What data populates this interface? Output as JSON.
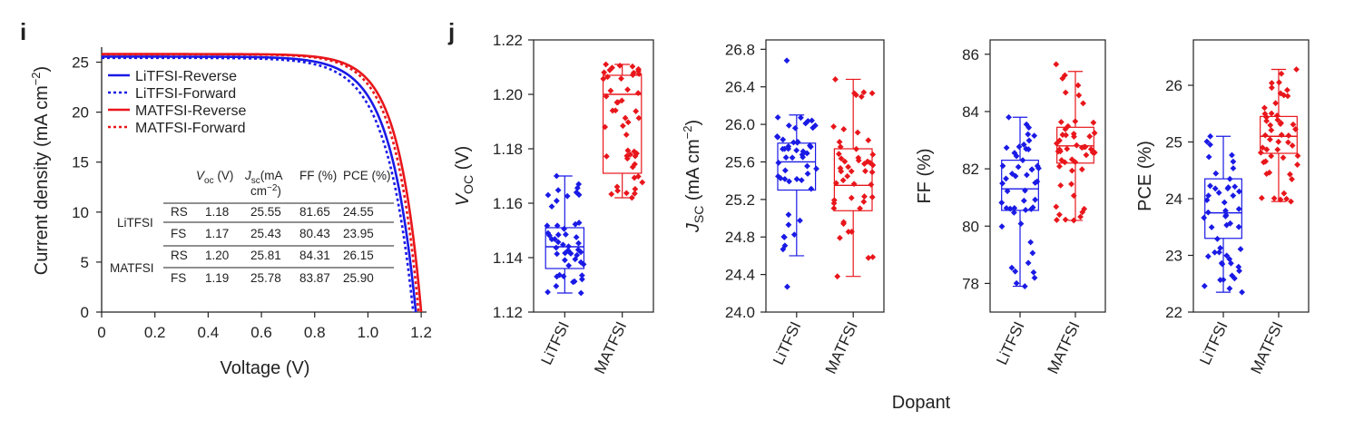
{
  "figure": {
    "panel_i": "i",
    "panel_j": "j",
    "shared_xlabel": "Dopant"
  },
  "colors": {
    "litfsi": "#1a1ae6",
    "matfsi": "#e8161b",
    "axis": "#222222"
  },
  "chart_data": [
    {
      "type": "line",
      "title": "",
      "xlabel": "Voltage (V)",
      "ylabel_main": "Current density (mA cm",
      "ylabel_sup": "−2",
      "ylabel_tail": ")",
      "xlim": [
        0,
        1.22
      ],
      "ylim": [
        0,
        26.5
      ],
      "xticks": [
        "0",
        "0.2",
        "0.4",
        "0.6",
        "0.8",
        "1.0",
        "1.2"
      ],
      "xtick_values": [
        0,
        0.2,
        0.4,
        0.6,
        0.8,
        1.0,
        1.2
      ],
      "yticks": [
        "0",
        "5",
        "10",
        "15",
        "20",
        "25"
      ],
      "ytick_values": [
        0,
        5,
        10,
        15,
        20,
        25
      ],
      "legend_position": "top-left",
      "series": [
        {
          "name": "LiTFSI-Reverse",
          "color": "#1a1ae6",
          "dash": "solid",
          "voc": 1.18,
          "jsc": 25.55,
          "ff": 81.65
        },
        {
          "name": "LiTFSI-Forward",
          "color": "#1a1ae6",
          "dash": "dotted",
          "voc": 1.17,
          "jsc": 25.43,
          "ff": 80.43
        },
        {
          "name": "MATFSI-Reverse",
          "color": "#e8161b",
          "dash": "solid",
          "voc": 1.2,
          "jsc": 25.81,
          "ff": 84.31
        },
        {
          "name": "MATFSI-Forward",
          "color": "#e8161b",
          "dash": "dotted",
          "voc": 1.19,
          "jsc": 25.78,
          "ff": 83.87
        }
      ],
      "table": {
        "headers": [
          "",
          "",
          "V",
          "oc",
          " (V)",
          "J",
          "sc",
          "(mA",
          "cm",
          "−2",
          ")",
          "FF (%)",
          "PCE (%)"
        ],
        "voc_head": "V",
        "voc_sub": "oc",
        "voc_unit": " (V)",
        "jsc_head": "J",
        "jsc_sub": "sc",
        "jsc_unit": "(mA",
        "jsc_unit2": "cm",
        "jsc_sup": "−2",
        "jsc_close": ")",
        "ff_head": "FF (%)",
        "pce_head": "PCE (%)",
        "groups": [
          {
            "name": "LiTFSI",
            "rows": [
              {
                "scan": "RS",
                "voc": "1.18",
                "jsc": "25.55",
                "ff": "81.65",
                "pce": "24.55"
              },
              {
                "scan": "FS",
                "voc": "1.17",
                "jsc": "25.43",
                "ff": "80.43",
                "pce": "23.95"
              }
            ]
          },
          {
            "name": "MATFSI",
            "rows": [
              {
                "scan": "RS",
                "voc": "1.20",
                "jsc": "25.81",
                "ff": "84.31",
                "pce": "26.15"
              },
              {
                "scan": "FS",
                "voc": "1.19",
                "jsc": "25.78",
                "ff": "83.87",
                "pce": "25.90"
              }
            ]
          }
        ]
      }
    },
    {
      "type": "box",
      "ylabel_main": "V",
      "ylabel_sub": "OC",
      "ylabel_tail": " (V)",
      "ylim": [
        1.12,
        1.22
      ],
      "yticks": [
        "1.12",
        "1.14",
        "1.16",
        "1.18",
        "1.20",
        "1.22"
      ],
      "ytick_values": [
        1.12,
        1.14,
        1.16,
        1.18,
        1.2,
        1.22
      ],
      "categories": [
        "LiTFSI",
        "MATFSI"
      ],
      "boxes": [
        {
          "q1": 1.136,
          "median": 1.144,
          "q3": 1.151,
          "whisker_low": 1.127,
          "whisker_high": 1.17,
          "n": 50,
          "min": 1.127,
          "max": 1.17,
          "seed": 11
        },
        {
          "q1": 1.171,
          "median": 1.2,
          "q3": 1.207,
          "whisker_low": 1.162,
          "whisker_high": 1.211,
          "n": 50,
          "min": 1.162,
          "max": 1.211,
          "seed": 12
        }
      ]
    },
    {
      "type": "box",
      "ylabel_main": "J",
      "ylabel_sub": "SC",
      "ylabel_tail": " (mA cm",
      "ylabel_sup": "−2",
      "ylabel_close": ")",
      "ylim": [
        24.0,
        26.9
      ],
      "yticks": [
        "24.0",
        "24.4",
        "24.8",
        "25.2",
        "25.6",
        "26.0",
        "26.4",
        "26.8"
      ],
      "ytick_values": [
        24.0,
        24.4,
        24.8,
        25.2,
        25.6,
        26.0,
        26.4,
        26.8
      ],
      "categories": [
        "LiTFSI",
        "MATFSI"
      ],
      "boxes": [
        {
          "q1": 25.3,
          "median": 25.6,
          "q3": 25.8,
          "whisker_low": 24.6,
          "whisker_high": 26.1,
          "n": 50,
          "min": 24.27,
          "max": 26.68,
          "seed": 21
        },
        {
          "q1": 25.08,
          "median": 25.35,
          "q3": 25.74,
          "whisker_low": 24.38,
          "whisker_high": 26.48,
          "n": 50,
          "min": 24.38,
          "max": 26.48,
          "seed": 22
        }
      ]
    },
    {
      "type": "box",
      "ylabel_main": "FF (%)",
      "ylim": [
        77.0,
        86.5
      ],
      "yticks": [
        "78",
        "80",
        "82",
        "84",
        "86"
      ],
      "ytick_values": [
        78,
        80,
        82,
        84,
        86
      ],
      "categories": [
        "LiTFSI",
        "MATFSI"
      ],
      "boxes": [
        {
          "q1": 80.55,
          "median": 81.3,
          "q3": 82.3,
          "whisker_low": 77.9,
          "whisker_high": 83.8,
          "n": 50,
          "min": 77.9,
          "max": 83.8,
          "seed": 31
        },
        {
          "q1": 82.2,
          "median": 82.8,
          "q3": 83.45,
          "whisker_low": 80.2,
          "whisker_high": 85.4,
          "n": 50,
          "min": 80.2,
          "max": 85.65,
          "seed": 32
        }
      ]
    },
    {
      "type": "box",
      "ylabel_main": "PCE (%)",
      "ylim": [
        22.0,
        26.8
      ],
      "yticks": [
        "22",
        "23",
        "24",
        "25",
        "26"
      ],
      "ytick_values": [
        22,
        23,
        24,
        25,
        26
      ],
      "categories": [
        "LiTFSI",
        "MATFSI"
      ],
      "boxes": [
        {
          "q1": 23.3,
          "median": 23.75,
          "q3": 24.35,
          "whisker_low": 22.35,
          "whisker_high": 25.1,
          "n": 50,
          "min": 22.35,
          "max": 25.1,
          "seed": 41
        },
        {
          "q1": 24.8,
          "median": 25.1,
          "q3": 25.45,
          "whisker_low": 23.95,
          "whisker_high": 26.28,
          "n": 50,
          "min": 23.95,
          "max": 26.28,
          "seed": 42
        }
      ]
    }
  ]
}
